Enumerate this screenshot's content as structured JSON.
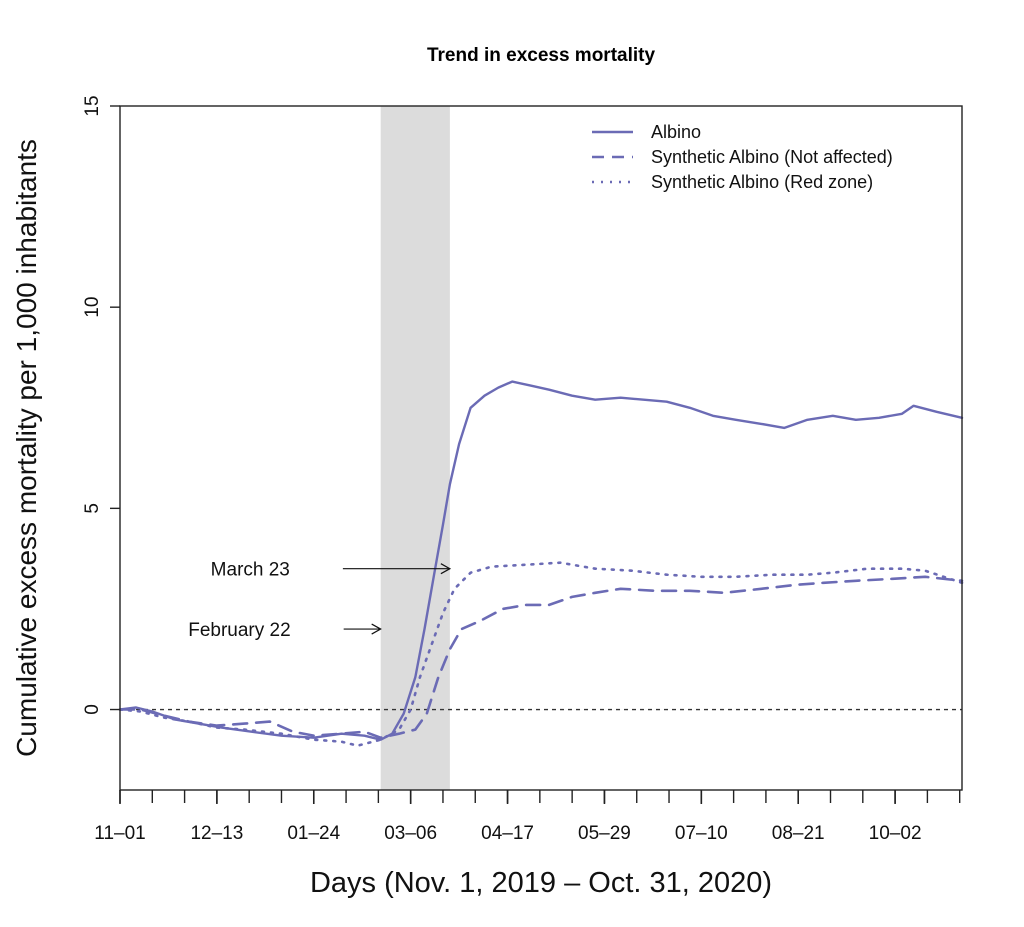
{
  "chart_data": {
    "type": "line",
    "title": "Trend in excess mortality",
    "xlabel": "Days (Nov. 1, 2019 – Oct. 31, 2020)",
    "ylabel": "Cumulative excess mortality per 1,000 inhabitants",
    "ylim": [
      -2,
      15
    ],
    "yticks": [
      0,
      5,
      10,
      15
    ],
    "xlim": [
      "2019-11-01",
      "2020-10-31"
    ],
    "xticks": [
      {
        "date": "2019-11-01",
        "label": "11–01"
      },
      {
        "date": "2019-12-13",
        "label": "12–13"
      },
      {
        "date": "2020-01-24",
        "label": "01–24"
      },
      {
        "date": "2020-03-06",
        "label": "03–06"
      },
      {
        "date": "2020-04-17",
        "label": "04–17"
      },
      {
        "date": "2020-05-29",
        "label": "05–29"
      },
      {
        "date": "2020-07-10",
        "label": "07–10"
      },
      {
        "date": "2020-08-21",
        "label": "08–21"
      },
      {
        "date": "2020-10-02",
        "label": "10–02"
      }
    ],
    "shaded_period": [
      "2020-02-22",
      "2020-03-23"
    ],
    "reference_line": 0,
    "legend_position": "top-right",
    "colors": {
      "series": "#6b6bb5",
      "shade": "#dcdcdc",
      "axis": "#222222"
    },
    "annotations": [
      {
        "text": "March 23",
        "date": "2020-03-23",
        "y": 3.5
      },
      {
        "text": "February 22",
        "date": "2020-02-22",
        "y": 2.0
      }
    ],
    "series": [
      {
        "name": "Albino",
        "style": "solid",
        "points": [
          [
            "2019-11-01",
            0.0
          ],
          [
            "2019-11-08",
            0.05
          ],
          [
            "2019-11-15",
            -0.05
          ],
          [
            "2019-11-25",
            -0.25
          ],
          [
            "2019-12-05",
            -0.35
          ],
          [
            "2019-12-15",
            -0.45
          ],
          [
            "2019-12-28",
            -0.55
          ],
          [
            "2020-01-10",
            -0.65
          ],
          [
            "2020-01-24",
            -0.7
          ],
          [
            "2020-02-05",
            -0.6
          ],
          [
            "2020-02-15",
            -0.65
          ],
          [
            "2020-02-22",
            -0.75
          ],
          [
            "2020-02-27",
            -0.6
          ],
          [
            "2020-03-03",
            -0.1
          ],
          [
            "2020-03-08",
            0.8
          ],
          [
            "2020-03-12",
            2.0
          ],
          [
            "2020-03-16",
            3.3
          ],
          [
            "2020-03-20",
            4.6
          ],
          [
            "2020-03-23",
            5.6
          ],
          [
            "2020-03-27",
            6.6
          ],
          [
            "2020-04-01",
            7.5
          ],
          [
            "2020-04-07",
            7.8
          ],
          [
            "2020-04-13",
            8.0
          ],
          [
            "2020-04-19",
            8.15
          ],
          [
            "2020-04-27",
            8.05
          ],
          [
            "2020-05-05",
            7.95
          ],
          [
            "2020-05-15",
            7.8
          ],
          [
            "2020-05-25",
            7.7
          ],
          [
            "2020-06-05",
            7.75
          ],
          [
            "2020-06-15",
            7.7
          ],
          [
            "2020-06-25",
            7.65
          ],
          [
            "2020-07-05",
            7.5
          ],
          [
            "2020-07-15",
            7.3
          ],
          [
            "2020-07-25",
            7.2
          ],
          [
            "2020-08-05",
            7.1
          ],
          [
            "2020-08-15",
            7.0
          ],
          [
            "2020-08-25",
            7.2
          ],
          [
            "2020-09-05",
            7.3
          ],
          [
            "2020-09-15",
            7.2
          ],
          [
            "2020-09-25",
            7.25
          ],
          [
            "2020-10-05",
            7.35
          ],
          [
            "2020-10-10",
            7.55
          ],
          [
            "2020-10-20",
            7.4
          ],
          [
            "2020-10-31",
            7.25
          ]
        ]
      },
      {
        "name": "Synthetic Albino (Not affected)",
        "style": "dashed",
        "points": [
          [
            "2019-11-01",
            0.0
          ],
          [
            "2019-11-10",
            0.0
          ],
          [
            "2019-11-20",
            -0.15
          ],
          [
            "2019-12-01",
            -0.3
          ],
          [
            "2019-12-13",
            -0.4
          ],
          [
            "2019-12-25",
            -0.35
          ],
          [
            "2020-01-05",
            -0.3
          ],
          [
            "2020-01-15",
            -0.55
          ],
          [
            "2020-01-24",
            -0.65
          ],
          [
            "2020-02-05",
            -0.6
          ],
          [
            "2020-02-15",
            -0.55
          ],
          [
            "2020-02-22",
            -0.7
          ],
          [
            "2020-03-01",
            -0.6
          ],
          [
            "2020-03-08",
            -0.5
          ],
          [
            "2020-03-13",
            -0.1
          ],
          [
            "2020-03-18",
            0.8
          ],
          [
            "2020-03-23",
            1.5
          ],
          [
            "2020-03-28",
            2.0
          ],
          [
            "2020-04-05",
            2.2
          ],
          [
            "2020-04-15",
            2.5
          ],
          [
            "2020-04-25",
            2.6
          ],
          [
            "2020-05-05",
            2.6
          ],
          [
            "2020-05-15",
            2.8
          ],
          [
            "2020-05-25",
            2.9
          ],
          [
            "2020-06-05",
            3.0
          ],
          [
            "2020-06-20",
            2.95
          ],
          [
            "2020-07-05",
            2.95
          ],
          [
            "2020-07-20",
            2.9
          ],
          [
            "2020-08-05",
            3.0
          ],
          [
            "2020-08-20",
            3.1
          ],
          [
            "2020-09-01",
            3.15
          ],
          [
            "2020-09-15",
            3.2
          ],
          [
            "2020-10-01",
            3.25
          ],
          [
            "2020-10-15",
            3.3
          ],
          [
            "2020-10-31",
            3.2
          ]
        ]
      },
      {
        "name": "Synthetic Albino (Red zone)",
        "style": "dotted",
        "points": [
          [
            "2019-11-01",
            0.0
          ],
          [
            "2019-11-10",
            -0.05
          ],
          [
            "2019-11-20",
            -0.2
          ],
          [
            "2019-12-01",
            -0.3
          ],
          [
            "2019-12-13",
            -0.45
          ],
          [
            "2019-12-25",
            -0.5
          ],
          [
            "2020-01-10",
            -0.6
          ],
          [
            "2020-01-24",
            -0.75
          ],
          [
            "2020-02-05",
            -0.8
          ],
          [
            "2020-02-12",
            -0.9
          ],
          [
            "2020-02-22",
            -0.75
          ],
          [
            "2020-03-01",
            -0.5
          ],
          [
            "2020-03-06",
            0.0
          ],
          [
            "2020-03-10",
            0.8
          ],
          [
            "2020-03-15",
            1.6
          ],
          [
            "2020-03-20",
            2.4
          ],
          [
            "2020-03-25",
            3.0
          ],
          [
            "2020-04-01",
            3.4
          ],
          [
            "2020-04-10",
            3.55
          ],
          [
            "2020-04-25",
            3.6
          ],
          [
            "2020-05-10",
            3.65
          ],
          [
            "2020-05-25",
            3.5
          ],
          [
            "2020-06-10",
            3.45
          ],
          [
            "2020-06-25",
            3.35
          ],
          [
            "2020-07-10",
            3.3
          ],
          [
            "2020-07-25",
            3.3
          ],
          [
            "2020-08-10",
            3.35
          ],
          [
            "2020-08-25",
            3.35
          ],
          [
            "2020-09-05",
            3.4
          ],
          [
            "2020-09-20",
            3.5
          ],
          [
            "2020-10-05",
            3.5
          ],
          [
            "2020-10-15",
            3.45
          ],
          [
            "2020-10-31",
            3.15
          ]
        ]
      }
    ]
  }
}
